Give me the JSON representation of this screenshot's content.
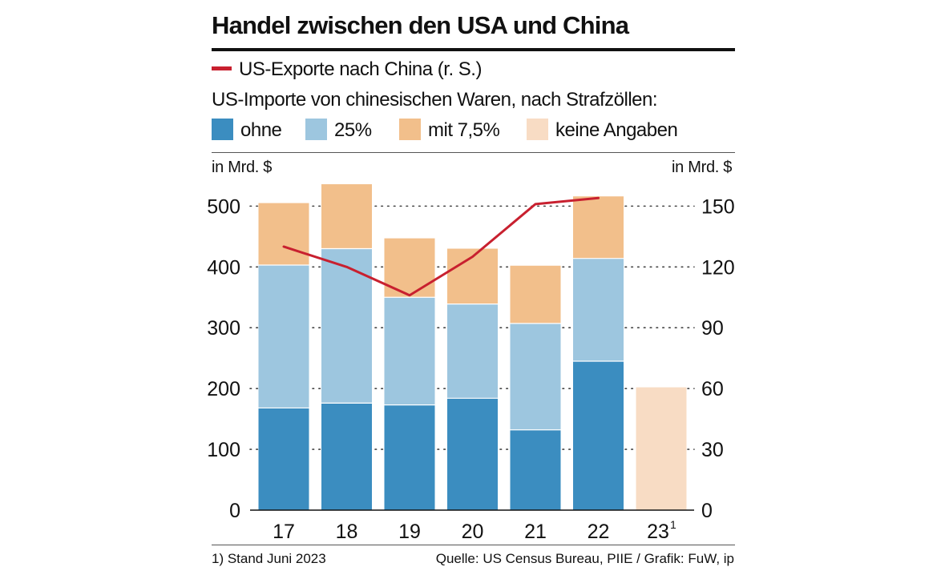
{
  "title": "Handel zwischen den USA und China",
  "legend": {
    "line_label": "US-Exporte nach China (r. S.)",
    "imports_heading": "US-Importe von chinesischen Waren, nach Strafzöllen:",
    "items": [
      {
        "label": "ohne",
        "color": "#3b8dc0"
      },
      {
        "label": "25%",
        "color": "#9dc6df"
      },
      {
        "label": "mit 7,5%",
        "color": "#f2bf8b"
      },
      {
        "label": "keine Angaben",
        "color": "#f8dcc4"
      }
    ]
  },
  "unit_left": "in Mrd. $",
  "unit_right": "in Mrd. $",
  "chart_data": {
    "type": "bar",
    "stacked": true,
    "categories": [
      "17",
      "18",
      "19",
      "20",
      "21",
      "22",
      "23"
    ],
    "category_footnotes": [
      "",
      "",
      "",
      "",
      "",
      "",
      "1"
    ],
    "series": [
      {
        "name": "ohne",
        "values": [
          168,
          176,
          173,
          184,
          132,
          245,
          null
        ],
        "color": "#3b8dc0"
      },
      {
        "name": "25%",
        "values": [
          235,
          254,
          177,
          155,
          175,
          169,
          null
        ],
        "color": "#9dc6df"
      },
      {
        "name": "mit 7,5%",
        "values": [
          102,
          106,
          97,
          91,
          95,
          102,
          null
        ],
        "color": "#f2bf8b"
      },
      {
        "name": "keine Angaben",
        "values": [
          null,
          null,
          null,
          null,
          null,
          null,
          202
        ],
        "color": "#f8dcc4"
      }
    ],
    "line_series": {
      "name": "US-Exporte nach China (r. S.)",
      "axis": "right",
      "color": "#c8202f",
      "values": [
        130,
        120,
        106,
        125,
        151,
        154,
        null
      ]
    },
    "ylim": [
      0,
      540
    ],
    "y_ticks": [
      0,
      100,
      200,
      300,
      400,
      500
    ],
    "y2lim": [
      0,
      162
    ],
    "y2_ticks": [
      0,
      30,
      60,
      90,
      120,
      150
    ],
    "grid": "dotted",
    "legend_position": "top"
  },
  "footer": {
    "footnote": "1) Stand Juni 2023",
    "source": "Quelle: US Census Bureau, PIIE / Grafik: FuW, ip"
  }
}
